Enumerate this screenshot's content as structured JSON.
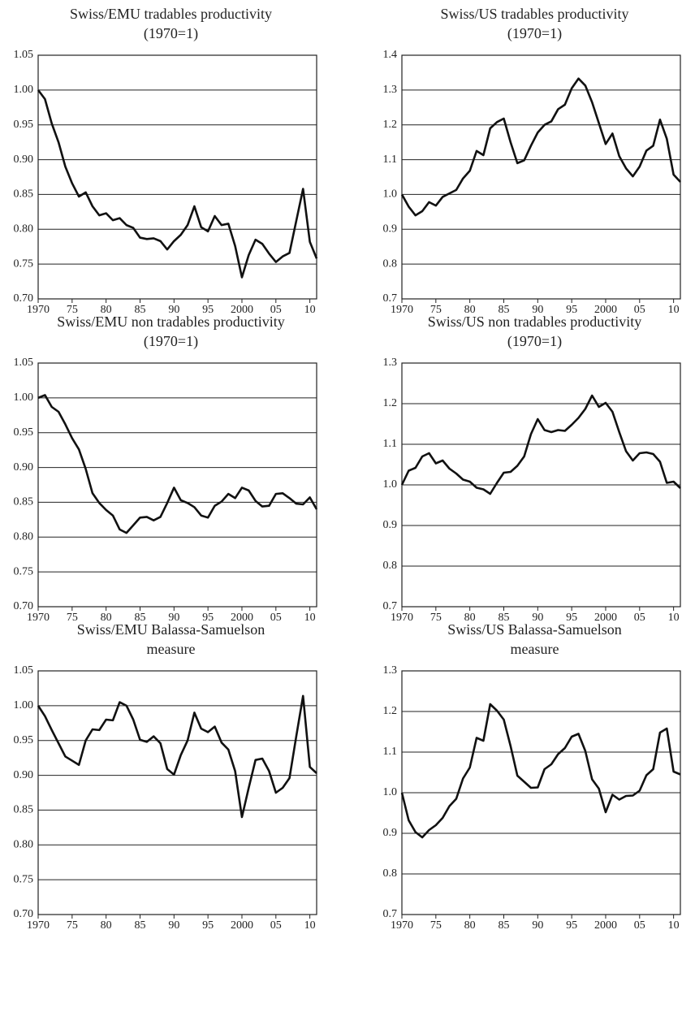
{
  "chart_data": [
    {
      "type": "line",
      "title": [
        "Swiss/EMU tradables productivity",
        "(1970=1)"
      ],
      "x": [
        1970,
        1971,
        1972,
        1973,
        1974,
        1975,
        1976,
        1977,
        1978,
        1979,
        1980,
        1981,
        1982,
        1983,
        1984,
        1985,
        1986,
        1987,
        1988,
        1989,
        1990,
        1991,
        1992,
        1993,
        1994,
        1995,
        1996,
        1997,
        1998,
        1999,
        2000,
        2001,
        2002,
        2003,
        2004,
        2005,
        2006,
        2007,
        2008,
        2009,
        2010,
        2011
      ],
      "values": [
        1.0,
        0.987,
        0.952,
        0.925,
        0.89,
        0.866,
        0.847,
        0.853,
        0.833,
        0.82,
        0.823,
        0.813,
        0.816,
        0.806,
        0.802,
        0.788,
        0.786,
        0.787,
        0.783,
        0.771,
        0.783,
        0.792,
        0.806,
        0.833,
        0.803,
        0.797,
        0.819,
        0.806,
        0.808,
        0.776,
        0.731,
        0.763,
        0.785,
        0.779,
        0.765,
        0.753,
        0.761,
        0.766,
        0.812,
        0.858,
        0.782,
        0.758
      ],
      "color": "#111111",
      "grid": true,
      "xlim": [
        1970,
        2011
      ],
      "xticks": [
        1970,
        {
          "value": 1975,
          "label": "75"
        },
        {
          "value": 1980,
          "label": "80"
        },
        {
          "value": 1985,
          "label": "85"
        },
        {
          "value": 1990,
          "label": "90"
        },
        {
          "value": 1995,
          "label": "95"
        },
        2000,
        {
          "value": 2005,
          "label": "05"
        },
        {
          "value": 2010,
          "label": "10"
        }
      ],
      "ylim": [
        0.7,
        1.05
      ],
      "yticks": [
        {
          "value": 0.7,
          "label": "0.70"
        },
        0.75,
        {
          "value": 0.8,
          "label": "0.80"
        },
        0.85,
        {
          "value": 0.9,
          "label": "0.90"
        },
        0.95,
        {
          "value": 1.0,
          "label": "1.00"
        },
        1.05
      ]
    },
    {
      "type": "line",
      "title": [
        "Swiss/US tradables productivity",
        "(1970=1)"
      ],
      "x": [
        1970,
        1971,
        1972,
        1973,
        1974,
        1975,
        1976,
        1977,
        1978,
        1979,
        1980,
        1981,
        1982,
        1983,
        1984,
        1985,
        1986,
        1987,
        1988,
        1989,
        1990,
        1991,
        1992,
        1993,
        1994,
        1995,
        1996,
        1997,
        1998,
        1999,
        2000,
        2001,
        2002,
        2003,
        2004,
        2005,
        2006,
        2007,
        2008,
        2009,
        2010,
        2011
      ],
      "values": [
        1.0,
        0.965,
        0.94,
        0.952,
        0.978,
        0.968,
        0.993,
        1.003,
        1.013,
        1.046,
        1.068,
        1.125,
        1.113,
        1.19,
        1.208,
        1.218,
        1.15,
        1.09,
        1.098,
        1.14,
        1.178,
        1.2,
        1.21,
        1.245,
        1.258,
        1.305,
        1.333,
        1.313,
        1.265,
        1.205,
        1.145,
        1.175,
        1.11,
        1.075,
        1.052,
        1.08,
        1.126,
        1.14,
        1.215,
        1.16,
        1.057,
        1.036
      ],
      "color": "#111111",
      "grid": true,
      "xlim": [
        1970,
        2011
      ],
      "xticks": [
        1970,
        {
          "value": 1975,
          "label": "75"
        },
        {
          "value": 1980,
          "label": "80"
        },
        {
          "value": 1985,
          "label": "85"
        },
        {
          "value": 1990,
          "label": "90"
        },
        {
          "value": 1995,
          "label": "95"
        },
        2000,
        {
          "value": 2005,
          "label": "05"
        },
        {
          "value": 2010,
          "label": "10"
        }
      ],
      "ylim": [
        0.7,
        1.4
      ],
      "yticks": [
        0.7,
        0.8,
        0.9,
        {
          "value": 1.0,
          "label": "1.0"
        },
        1.1,
        1.2,
        1.3,
        1.4
      ]
    },
    {
      "type": "line",
      "title": [
        "Swiss/EMU non tradables productivity",
        "(1970=1)"
      ],
      "x": [
        1970,
        1971,
        1972,
        1973,
        1974,
        1975,
        1976,
        1977,
        1978,
        1979,
        1980,
        1981,
        1982,
        1983,
        1984,
        1985,
        1986,
        1987,
        1988,
        1989,
        1990,
        1991,
        1992,
        1993,
        1994,
        1995,
        1996,
        1997,
        1998,
        1999,
        2000,
        2001,
        2002,
        2003,
        2004,
        2005,
        2006,
        2007,
        2008,
        2009,
        2010,
        2011
      ],
      "values": [
        1.0,
        1.004,
        0.987,
        0.98,
        0.962,
        0.942,
        0.926,
        0.898,
        0.863,
        0.849,
        0.839,
        0.831,
        0.811,
        0.806,
        0.817,
        0.828,
        0.829,
        0.824,
        0.829,
        0.849,
        0.871,
        0.853,
        0.849,
        0.843,
        0.831,
        0.828,
        0.845,
        0.851,
        0.862,
        0.856,
        0.871,
        0.867,
        0.852,
        0.844,
        0.845,
        0.862,
        0.863,
        0.856,
        0.848,
        0.847,
        0.857,
        0.84
      ],
      "color": "#111111",
      "grid": true,
      "xlim": [
        1970,
        2011
      ],
      "xticks": [
        1970,
        {
          "value": 1975,
          "label": "75"
        },
        {
          "value": 1980,
          "label": "80"
        },
        {
          "value": 1985,
          "label": "85"
        },
        {
          "value": 1990,
          "label": "90"
        },
        {
          "value": 1995,
          "label": "95"
        },
        2000,
        {
          "value": 2005,
          "label": "05"
        },
        {
          "value": 2010,
          "label": "10"
        }
      ],
      "ylim": [
        0.7,
        1.05
      ],
      "yticks": [
        {
          "value": 0.7,
          "label": "0.70"
        },
        0.75,
        {
          "value": 0.8,
          "label": "0.80"
        },
        0.85,
        {
          "value": 0.9,
          "label": "0.90"
        },
        0.95,
        {
          "value": 1.0,
          "label": "1.00"
        },
        1.05
      ]
    },
    {
      "type": "line",
      "title": [
        "Swiss/US non tradables productivity",
        "(1970=1)"
      ],
      "x": [
        1970,
        1971,
        1972,
        1973,
        1974,
        1975,
        1976,
        1977,
        1978,
        1979,
        1980,
        1981,
        1982,
        1983,
        1984,
        1985,
        1986,
        1987,
        1988,
        1989,
        1990,
        1991,
        1992,
        1993,
        1994,
        1995,
        1996,
        1997,
        1998,
        1999,
        2000,
        2001,
        2002,
        2003,
        2004,
        2005,
        2006,
        2007,
        2008,
        2009,
        2010,
        2011
      ],
      "values": [
        1.0,
        1.035,
        1.042,
        1.07,
        1.078,
        1.053,
        1.06,
        1.04,
        1.028,
        1.013,
        1.008,
        0.993,
        0.989,
        0.978,
        1.005,
        1.03,
        1.032,
        1.047,
        1.07,
        1.125,
        1.162,
        1.135,
        1.13,
        1.135,
        1.133,
        1.148,
        1.165,
        1.187,
        1.22,
        1.192,
        1.202,
        1.18,
        1.13,
        1.083,
        1.06,
        1.078,
        1.08,
        1.076,
        1.057,
        1.005,
        1.008,
        0.992
      ],
      "color": "#111111",
      "grid": true,
      "xlim": [
        1970,
        2011
      ],
      "xticks": [
        1970,
        {
          "value": 1975,
          "label": "75"
        },
        {
          "value": 1980,
          "label": "80"
        },
        {
          "value": 1985,
          "label": "85"
        },
        {
          "value": 1990,
          "label": "90"
        },
        {
          "value": 1995,
          "label": "95"
        },
        2000,
        {
          "value": 2005,
          "label": "05"
        },
        {
          "value": 2010,
          "label": "10"
        }
      ],
      "ylim": [
        0.7,
        1.3
      ],
      "yticks": [
        0.7,
        0.8,
        0.9,
        {
          "value": 1.0,
          "label": "1.0"
        },
        1.1,
        1.2,
        1.3
      ]
    },
    {
      "type": "line",
      "title": [
        "Swiss/EMU Balassa-Samuelson",
        "measure"
      ],
      "x": [
        1970,
        1971,
        1972,
        1973,
        1974,
        1975,
        1976,
        1977,
        1978,
        1979,
        1980,
        1981,
        1982,
        1983,
        1984,
        1985,
        1986,
        1987,
        1988,
        1989,
        1990,
        1991,
        1992,
        1993,
        1994,
        1995,
        1996,
        1997,
        1998,
        1999,
        2000,
        2001,
        2002,
        2003,
        2004,
        2005,
        2006,
        2007,
        2008,
        2009,
        2010,
        2011
      ],
      "values": [
        1.0,
        0.985,
        0.965,
        0.946,
        0.927,
        0.921,
        0.915,
        0.95,
        0.966,
        0.965,
        0.98,
        0.979,
        1.005,
        1.0,
        0.98,
        0.951,
        0.948,
        0.956,
        0.946,
        0.909,
        0.901,
        0.929,
        0.95,
        0.99,
        0.967,
        0.962,
        0.97,
        0.947,
        0.937,
        0.906,
        0.84,
        0.882,
        0.922,
        0.924,
        0.906,
        0.875,
        0.882,
        0.896,
        0.956,
        1.014,
        0.912,
        0.903
      ],
      "color": "#111111",
      "grid": true,
      "xlim": [
        1970,
        2011
      ],
      "xticks": [
        1970,
        {
          "value": 1975,
          "label": "75"
        },
        {
          "value": 1980,
          "label": "80"
        },
        {
          "value": 1985,
          "label": "85"
        },
        {
          "value": 1990,
          "label": "90"
        },
        {
          "value": 1995,
          "label": "95"
        },
        2000,
        {
          "value": 2005,
          "label": "05"
        },
        {
          "value": 2010,
          "label": "10"
        }
      ],
      "ylim": [
        0.7,
        1.05
      ],
      "yticks": [
        {
          "value": 0.7,
          "label": "0.70"
        },
        0.75,
        {
          "value": 0.8,
          "label": "0.80"
        },
        0.85,
        {
          "value": 0.9,
          "label": "0.90"
        },
        0.95,
        {
          "value": 1.0,
          "label": "1.00"
        },
        1.05
      ]
    },
    {
      "type": "line",
      "title": [
        "Swiss/US Balassa-Samuelson",
        "measure"
      ],
      "x": [
        1970,
        1971,
        1972,
        1973,
        1974,
        1975,
        1976,
        1977,
        1978,
        1979,
        1980,
        1981,
        1982,
        1983,
        1984,
        1985,
        1986,
        1987,
        1988,
        1989,
        1990,
        1991,
        1992,
        1993,
        1994,
        1995,
        1996,
        1997,
        1998,
        1999,
        2000,
        2001,
        2002,
        2003,
        2004,
        2005,
        2006,
        2007,
        2008,
        2009,
        2010,
        2011
      ],
      "values": [
        1.0,
        0.932,
        0.903,
        0.89,
        0.908,
        0.92,
        0.938,
        0.967,
        0.985,
        1.035,
        1.062,
        1.135,
        1.128,
        1.218,
        1.202,
        1.18,
        1.115,
        1.042,
        1.027,
        1.012,
        1.013,
        1.058,
        1.07,
        1.095,
        1.11,
        1.138,
        1.145,
        1.103,
        1.033,
        1.01,
        0.952,
        0.995,
        0.983,
        0.992,
        0.993,
        1.005,
        1.043,
        1.058,
        1.148,
        1.158,
        1.052,
        1.045
      ],
      "color": "#111111",
      "grid": true,
      "xlim": [
        1970,
        2011
      ],
      "xticks": [
        1970,
        {
          "value": 1975,
          "label": "75"
        },
        {
          "value": 1980,
          "label": "80"
        },
        {
          "value": 1985,
          "label": "85"
        },
        {
          "value": 1990,
          "label": "90"
        },
        {
          "value": 1995,
          "label": "95"
        },
        2000,
        {
          "value": 2005,
          "label": "05"
        },
        {
          "value": 2010,
          "label": "10"
        }
      ],
      "ylim": [
        0.7,
        1.3
      ],
      "yticks": [
        0.7,
        0.8,
        0.9,
        {
          "value": 1.0,
          "label": "1.0"
        },
        1.1,
        1.2,
        1.3
      ]
    }
  ]
}
